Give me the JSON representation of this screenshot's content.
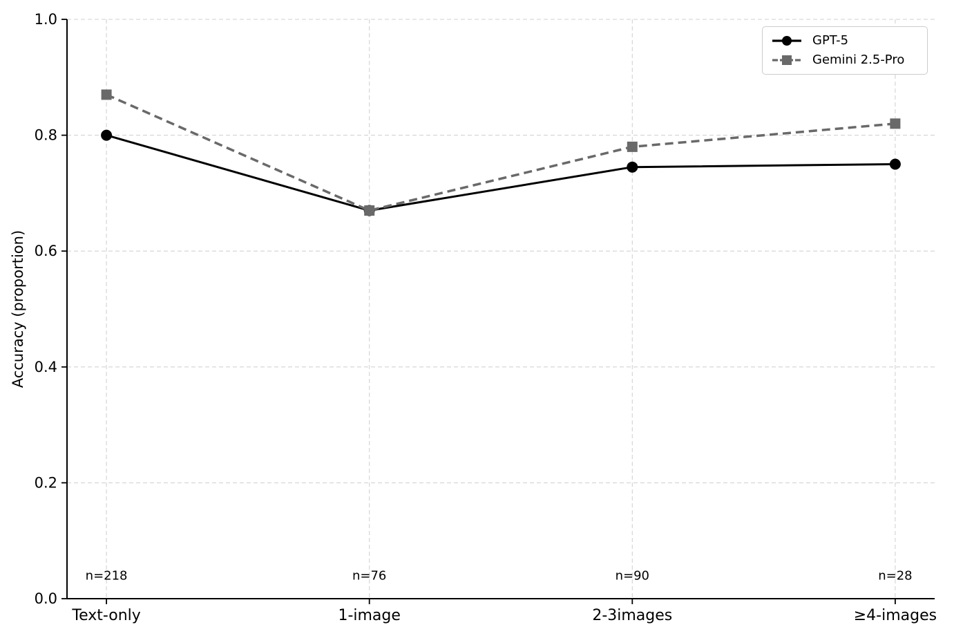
{
  "chart_data": {
    "type": "line",
    "title": "",
    "xlabel": "",
    "ylabel": "Accuracy (proportion)",
    "categories": [
      "Text-only",
      "1-image",
      "2-3images",
      "≥4-images"
    ],
    "series": [
      {
        "name": "GPT-5",
        "values": [
          0.8,
          0.67,
          0.745,
          0.75
        ],
        "color": "#000000",
        "line_style": "solid",
        "marker": "circle",
        "line_width": 3
      },
      {
        "name": "Gemini 2.5-Pro",
        "values": [
          0.87,
          0.67,
          0.78,
          0.82
        ],
        "color": "#696969",
        "line_style": "dashed",
        "marker": "square",
        "line_width": 3.5
      }
    ],
    "annotations": [
      {
        "text": "n=218",
        "x_index": 0,
        "y": 0.04
      },
      {
        "text": "n=76",
        "x_index": 1,
        "y": 0.04
      },
      {
        "text": "n=90",
        "x_index": 2,
        "y": 0.04
      },
      {
        "text": "n=28",
        "x_index": 3,
        "y": 0.04
      }
    ],
    "yticks": [
      0.0,
      0.2,
      0.4,
      0.6,
      0.8,
      1.0
    ],
    "ylim": [
      0.0,
      1.0
    ],
    "grid": {
      "show": true,
      "style": "dashed",
      "color": "#d2d2d2"
    },
    "legend_position": "upper right",
    "colors": {
      "axis": "#000000",
      "text": "#000000",
      "legend_border": "#cccccc",
      "background": "#ffffff"
    }
  }
}
